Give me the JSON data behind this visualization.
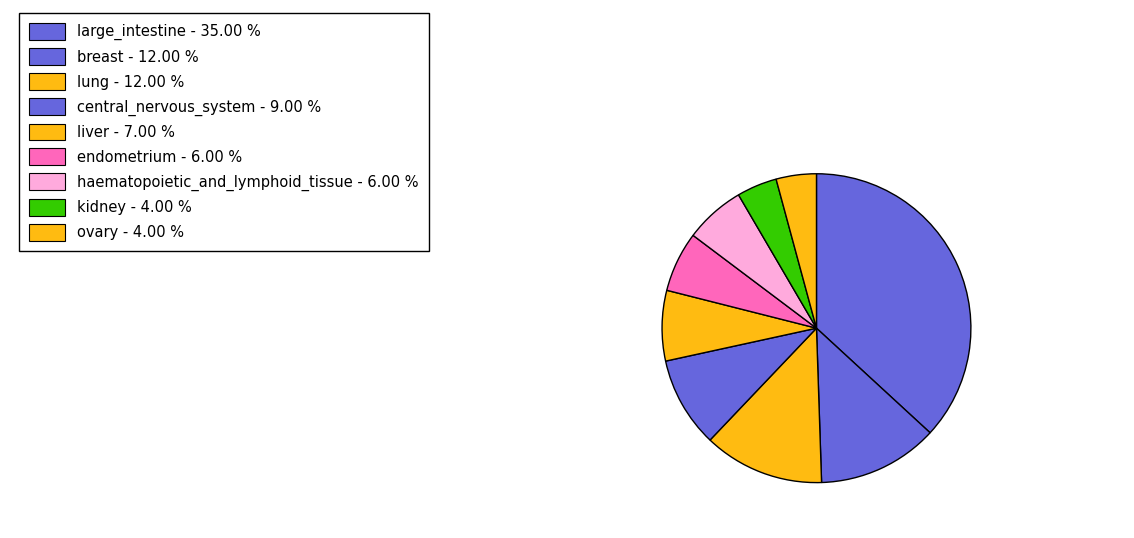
{
  "labels": [
    "large_intestine - 35.00 %",
    "breast - 12.00 %",
    "lung - 12.00 %",
    "central_nervous_system - 9.00 %",
    "liver - 7.00 %",
    "endometrium - 6.00 %",
    "haematopoietic_and_lymphoid_tissue - 6.00 %",
    "kidney - 4.00 %",
    "ovary - 4.00 %"
  ],
  "values": [
    35,
    12,
    12,
    9,
    7,
    6,
    6,
    4,
    4
  ],
  "colors": [
    "#6666dd",
    "#6666dd",
    "#ffbb00",
    "#6666dd",
    "#ffbb00",
    "#ff77bb",
    "#ffaadd",
    "#33cc00",
    "#ffbb00"
  ],
  "startangle": 90,
  "figsize": [
    11.34,
    5.38
  ],
  "dpi": 100
}
